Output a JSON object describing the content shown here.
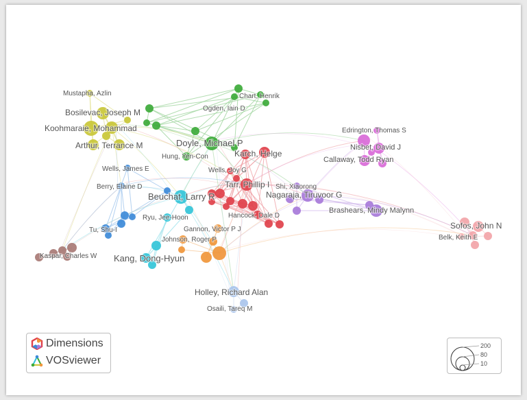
{
  "branding": {
    "dimensions_label": "Dimensions",
    "vosviewer_label": "VOSviewer"
  },
  "size_legend": {
    "values": [
      "200",
      "80",
      "10"
    ]
  },
  "colors": {
    "yellow": "#c9c737",
    "green": "#3daa3a",
    "red": "#e0414b",
    "pink": "#d96ad8",
    "purple": "#a77ad9",
    "blue": "#3d8ad8",
    "cyan": "#33c4d8",
    "orange": "#f0963a",
    "brown": "#a87a75",
    "lightblue": "#a9c4ec",
    "salmon": "#f2a4a8"
  },
  "network": {
    "labels": [
      {
        "id": "mustapha",
        "text": "Mustapha, Azlin",
        "cluster": "yellow"
      },
      {
        "id": "bosilevac",
        "text": "Bosilevac, Joseph M",
        "cluster": "yellow"
      },
      {
        "id": "koohmaraie",
        "text": "Koohmaraie, Mohammad",
        "cluster": "yellow"
      },
      {
        "id": "arthur",
        "text": "Arthur, Terrance M",
        "cluster": "yellow"
      },
      {
        "id": "chart",
        "text": "Chart, Henrik",
        "cluster": "green"
      },
      {
        "id": "ogden",
        "text": "Ogden, Iain D",
        "cluster": "green"
      },
      {
        "id": "doyle",
        "text": "Doyle, Michael P",
        "cluster": "green"
      },
      {
        "id": "hung",
        "text": "Hung, Yen-Con",
        "cluster": "green"
      },
      {
        "id": "karch",
        "text": "Karch, Helge",
        "cluster": "red"
      },
      {
        "id": "wellsjoy",
        "text": "Wells, Joy G",
        "cluster": "red"
      },
      {
        "id": "tarr",
        "text": "Tarr, Phillip I",
        "cluster": "red"
      },
      {
        "id": "hancock",
        "text": "Hancock, Dale D",
        "cluster": "red"
      },
      {
        "id": "wellsjames",
        "text": "Wells, James E",
        "cluster": "blue"
      },
      {
        "id": "berry",
        "text": "Berry, Elaine D",
        "cluster": "blue"
      },
      {
        "id": "tu",
        "text": "Tu, Shu-I",
        "cluster": "blue"
      },
      {
        "id": "beuchat",
        "text": "Beuchat, Larry R",
        "cluster": "cyan"
      },
      {
        "id": "ryu",
        "text": "Ryu, Jee-Hoon",
        "cluster": "cyan"
      },
      {
        "id": "kang",
        "text": "Kang, Dong-Hyun",
        "cluster": "cyan"
      },
      {
        "id": "gannon",
        "text": "Gannon, Victor P J",
        "cluster": "orange"
      },
      {
        "id": "johnson",
        "text": "Johnson, Roger P",
        "cluster": "orange"
      },
      {
        "id": "kaspar",
        "text": "Kaspar, Charles W",
        "cluster": "brown"
      },
      {
        "id": "holley",
        "text": "Holley, Richard Alan",
        "cluster": "lightblue"
      },
      {
        "id": "osaili",
        "text": "Osaili, Tareq M",
        "cluster": "lightblue"
      },
      {
        "id": "edrington",
        "text": "Edrington, Thomas S",
        "cluster": "pink"
      },
      {
        "id": "nisbet",
        "text": "Nisbet, David J",
        "cluster": "pink"
      },
      {
        "id": "callaway",
        "text": "Callaway, Todd Ryan",
        "cluster": "pink"
      },
      {
        "id": "shi",
        "text": "Shi, Xiaorong",
        "cluster": "purple"
      },
      {
        "id": "nagaraja",
        "text": "Nagaraja, Tiruvoor G",
        "cluster": "purple"
      },
      {
        "id": "brashears",
        "text": "Brashears, Mindy Malynn",
        "cluster": "purple"
      },
      {
        "id": "sofos",
        "text": "Sofos, John N",
        "cluster": "salmon"
      },
      {
        "id": "belk",
        "text": "Belk, Keith E",
        "cluster": "salmon"
      }
    ]
  }
}
